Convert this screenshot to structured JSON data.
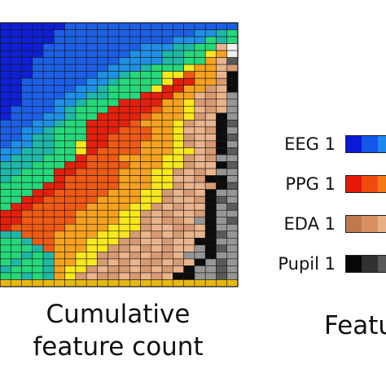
{
  "chart_data": {
    "type": "heatmap",
    "xlabel_line1": "Cumulative",
    "xlabel_line2": "feature count",
    "legend_title_partial": "Featu",
    "legend": [
      {
        "label": "EEG 1",
        "colors": [
          "#0a18d8",
          "#1457e8",
          "#1e88ee"
        ]
      },
      {
        "label": "PPG 1",
        "colors": [
          "#e81808",
          "#f04a10",
          "#f47818"
        ]
      },
      {
        "label": "EDA 1",
        "colors": [
          "#c0784c",
          "#d89060",
          "#e8b088"
        ]
      },
      {
        "label": "Pupil 1",
        "colors": [
          "#080808",
          "#303030",
          "#585858"
        ]
      }
    ],
    "palette": {
      "B": "#0e1fd6",
      "b": "#1c5fe6",
      "c": "#1e90e8",
      "t": "#1fb8a8",
      "g": "#25d87a",
      "r": "#e4200c",
      "o": "#f05a14",
      "a": "#f6a21e",
      "y": "#f8e81c",
      "s": "#d89a72",
      "p": "#eab48c",
      "k": "#0c0c0c",
      "d": "#5a5a5a",
      "m": "#969696",
      "w": "#f2f0ec",
      "Y": "#e8b810"
    },
    "rows": [
      "BBBBBBbbbbbbbbbbbbbbbb",
      "BBBBBbbbbbbbbbbbbbcctg",
      "BBBBBbbbbbbbbbbbcccgtg",
      "BBBBbbbbbbbbbcccttggpw",
      "BBBBbbbbbbbbcccttggyaw",
      "BBBbbbbbbbbccccttggapd",
      "BBBbbbbbbbccctgggyaaps",
      "BBBbbbbbbcctgggyyoaapk",
      "BBbbbbbbcctggggyrraask",
      "BBbbbbbcctggggyrraaspk",
      "BBbbbbccttgggrrraapspm",
      "BBbbbcctgggrrrraaysspm",
      "BbbbbctgggrrrroaaypsPm",
      "Bbbbcctggrrrroaaayspkm",
      "bbbcctggrrrroaaaysppkd",
      "bbcctgggrrroooaayppskm",
      "bbcttgggrrooooaaysppkd",
      "bccttggyrroooaaayspskm",
      "cctttggyrooooaaayypskd",
      "ctttgggroooaaaayyspsmm",
      "tttgggrrooooaaayysppkd",
      "ttgggrrooooaaayyspspmm",
      "tggggroooooaaayyppskkm",
      "ggggrroooooaaayysppskd",
      "gggrroooooaaayyspspkmm",
      "ggrroooooaaaayysppskdm",
      "grroooooaaaayyspsppkmd",
      "rroooooaaaayyspsppskmm",
      "rroooooaaaayyspsspmkmd",
      "roooooaaaayyysppsspkmm",
      "ttoooaaaayyyspspsppkdm",
      "ggtooaaayyyssppsppkkmm",
      "gggtoaaayysspspsppmkdm",
      "ggtgtaayysspspsspmmkmm",
      "gtggtaayyspspsspspkmdm",
      "tgggtayyspsspspspkmmdm",
      "ggtgtayspsspspspkkmmdm",
      "YYYYYYYYYYYYYYYYYYYYYY"
    ]
  }
}
